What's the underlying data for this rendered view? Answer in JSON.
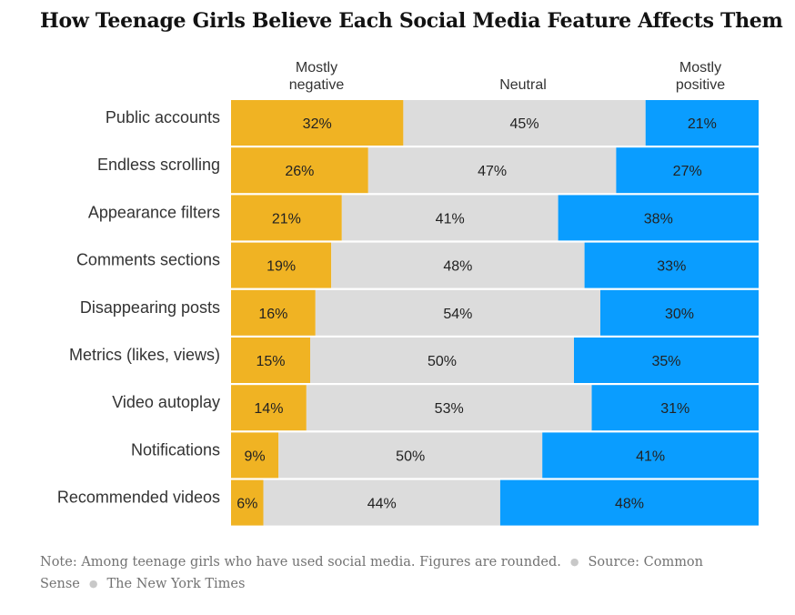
{
  "title": "How Teenage Girls Believe Each Social Media Feature Affects Them",
  "column_headers": {
    "negative": [
      "Mostly",
      "negative"
    ],
    "neutral": "Neutral",
    "positive": [
      "Mostly",
      "positive"
    ]
  },
  "colors": {
    "negative": "#F0B323",
    "neutral": "#DCDCDC",
    "positive": "#0A9DFF",
    "label_text": "#333333"
  },
  "chart_data": {
    "type": "bar",
    "stacked": true,
    "orientation": "horizontal",
    "title": "How Teenage Girls Believe Each Social Media Feature Affects Them",
    "categories": [
      "Public accounts",
      "Endless scrolling",
      "Appearance filters",
      "Comments sections",
      "Disappearing posts",
      "Metrics (likes, views)",
      "Video autoplay",
      "Notifications",
      "Recommended videos"
    ],
    "series": [
      {
        "name": "Mostly negative",
        "values": [
          32,
          26,
          21,
          19,
          16,
          15,
          14,
          9,
          6
        ]
      },
      {
        "name": "Neutral",
        "values": [
          45,
          47,
          41,
          48,
          54,
          50,
          53,
          50,
          44
        ]
      },
      {
        "name": "Mostly positive",
        "values": [
          21,
          27,
          38,
          33,
          30,
          35,
          31,
          41,
          48
        ]
      }
    ],
    "value_suffix": "%",
    "xlabel": "",
    "ylabel": "",
    "xlim": [
      0,
      98
    ]
  },
  "footer": {
    "note": "Note: Among teenage girls who have used social media. Figures are rounded.",
    "source": "Source: Common Sense",
    "credit": "The New York Times"
  }
}
